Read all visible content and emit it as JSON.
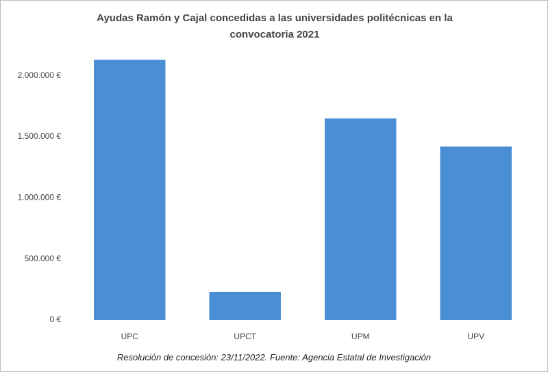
{
  "chart_data": {
    "type": "bar",
    "title": "Ayudas Ramón y Cajal concedidas a las universidades politécnicas en la convocatoria 2021",
    "categories": [
      "UPC",
      "UPCT",
      "UPM",
      "UPV"
    ],
    "values": [
      2130000,
      230000,
      1650000,
      1420000
    ],
    "color": "#4a8fd6",
    "ylim": [
      0,
      2200000
    ],
    "yticks": [
      {
        "value": 0,
        "label": "0 €"
      },
      {
        "value": 500000,
        "label": "500.000 €"
      },
      {
        "value": 1000000,
        "label": "1.000.000 €"
      },
      {
        "value": 1500000,
        "label": "1.500.000 €"
      },
      {
        "value": 2000000,
        "label": "2.000.000 €"
      }
    ],
    "grid": false,
    "footnote": "Resolución de concesión: 23/11/2022. Fuente: Agencia Estatal de Investigación"
  }
}
